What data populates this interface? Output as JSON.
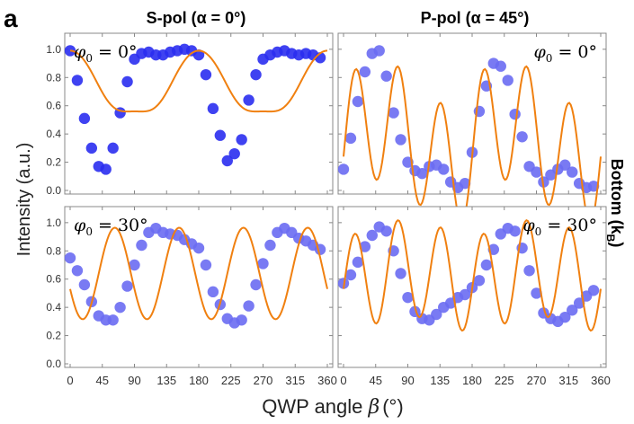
{
  "figure": {
    "panel_letter": "a",
    "column_titles": [
      "S-pol (α = 0°)",
      "P-pol (α = 45°)"
    ],
    "row_title_main": "Bottom (k",
    "row_title_sub": "B",
    "row_title_close": ")",
    "y_axis_label": "Intensity (a.u.)",
    "x_axis_label_text": "QWP angle ",
    "x_axis_label_symbol": "β",
    "x_axis_label_unit": "(°)"
  },
  "colors": {
    "marker": "#2a2ef0",
    "marker_light": "#6a6cf2",
    "fit": "#f08010",
    "frame": "#888888"
  },
  "chart_data": [
    {
      "type": "scatter",
      "panel": "top-left",
      "annotation": "φ0 = 0°",
      "xlim": [
        0,
        360
      ],
      "ylim": [
        0,
        1.05
      ],
      "x_ticks": [
        "0",
        "45",
        "90",
        "135",
        "180",
        "225",
        "270",
        "315",
        "360"
      ],
      "y_ticks": [
        "0.0",
        "0.2",
        "0.4",
        "0.6",
        "0.8",
        "1.0"
      ],
      "show_x_tick_labels": false,
      "show_y_tick_labels": true,
      "series": [
        {
          "x": [
            0,
            10,
            20,
            30,
            40,
            50,
            60,
            70,
            80,
            90,
            100,
            110,
            120,
            130,
            140,
            150,
            160,
            170,
            180,
            190,
            200,
            210,
            220,
            230,
            240,
            250,
            260,
            270,
            280,
            290,
            300,
            310,
            320,
            330,
            340,
            350
          ],
          "y": [
            0.99,
            0.78,
            0.51,
            0.3,
            0.17,
            0.15,
            0.3,
            0.55,
            0.77,
            0.93,
            0.97,
            0.98,
            0.96,
            0.96,
            0.98,
            0.99,
            1.0,
            0.99,
            0.96,
            0.82,
            0.58,
            0.39,
            0.21,
            0.26,
            0.36,
            0.64,
            0.82,
            0.93,
            0.96,
            0.98,
            0.99,
            0.97,
            0.96,
            0.97,
            0.96,
            0.94
          ]
        }
      ],
      "fit": {
        "c": [
          0.735,
          0.225,
          0.0,
          0.04,
          0.0,
          -0.01,
          0.0
        ]
      }
    },
    {
      "type": "scatter",
      "panel": "top-right",
      "annotation": "φ0 = 0°",
      "xlim": [
        0,
        360
      ],
      "ylim": [
        0,
        1.05
      ],
      "x_ticks": [
        "0",
        "45",
        "90",
        "135",
        "180",
        "225",
        "270",
        "315",
        "360"
      ],
      "y_ticks": [
        "0.0",
        "0.2",
        "0.4",
        "0.6",
        "0.8",
        "1.0"
      ],
      "show_x_tick_labels": false,
      "show_y_tick_labels": false,
      "series": [
        {
          "x": [
            0,
            10,
            20,
            30,
            40,
            50,
            60,
            70,
            80,
            90,
            100,
            110,
            120,
            130,
            140,
            150,
            160,
            170,
            180,
            190,
            200,
            210,
            220,
            230,
            240,
            250,
            260,
            270,
            280,
            290,
            300,
            310,
            320,
            330,
            340,
            350
          ],
          "y": [
            0.15,
            0.37,
            0.63,
            0.84,
            0.97,
            0.99,
            0.81,
            0.55,
            0.36,
            0.2,
            0.14,
            0.12,
            0.17,
            0.18,
            0.15,
            0.06,
            0.02,
            0.05,
            0.27,
            0.56,
            0.74,
            0.9,
            0.88,
            0.78,
            0.54,
            0.38,
            0.17,
            0.13,
            0.06,
            0.11,
            0.15,
            0.18,
            0.13,
            0.05,
            0.02,
            0.03
          ]
        }
      ],
      "fit": {
        "c": [
          0.35,
          -0.05,
          0.16,
          0.0,
          0.03,
          -0.06,
          0.43
        ]
      }
    },
    {
      "type": "scatter",
      "panel": "bottom-left",
      "annotation": "φ0 = 30°",
      "xlim": [
        0,
        360
      ],
      "ylim": [
        0,
        1.05
      ],
      "x_ticks": [
        "0",
        "45",
        "90",
        "135",
        "180",
        "225",
        "270",
        "315",
        "360"
      ],
      "y_ticks": [
        "0.0",
        "0.2",
        "0.4",
        "0.6",
        "0.8",
        "1.0"
      ],
      "show_x_tick_labels": true,
      "show_y_tick_labels": true,
      "series": [
        {
          "x": [
            0,
            10,
            20,
            30,
            40,
            50,
            60,
            70,
            80,
            90,
            100,
            110,
            120,
            130,
            140,
            150,
            160,
            170,
            180,
            190,
            200,
            210,
            220,
            230,
            240,
            250,
            260,
            270,
            280,
            290,
            300,
            310,
            320,
            330,
            340,
            350
          ],
          "y": [
            0.75,
            0.66,
            0.56,
            0.44,
            0.34,
            0.31,
            0.31,
            0.4,
            0.55,
            0.7,
            0.84,
            0.93,
            0.96,
            0.93,
            0.92,
            0.91,
            0.88,
            0.85,
            0.82,
            0.7,
            0.51,
            0.42,
            0.32,
            0.29,
            0.31,
            0.41,
            0.56,
            0.71,
            0.84,
            0.93,
            0.96,
            0.93,
            0.89,
            0.87,
            0.84,
            0.81
          ]
        }
      ],
      "fit": {
        "c": [
          0.64,
          0.0,
          0.0,
          -0.11,
          -0.305,
          0.0,
          0.0
        ]
      }
    },
    {
      "type": "scatter",
      "panel": "bottom-right",
      "annotation": "φ0 = 30°",
      "xlim": [
        0,
        360
      ],
      "ylim": [
        0,
        1.05
      ],
      "x_ticks": [
        "0",
        "45",
        "90",
        "135",
        "180",
        "225",
        "270",
        "315",
        "360"
      ],
      "y_ticks": [
        "0.0",
        "0.2",
        "0.4",
        "0.6",
        "0.8",
        "1.0"
      ],
      "show_x_tick_labels": true,
      "show_y_tick_labels": false,
      "series": [
        {
          "x": [
            0,
            10,
            20,
            30,
            40,
            50,
            60,
            70,
            80,
            90,
            100,
            110,
            120,
            130,
            140,
            150,
            160,
            170,
            180,
            190,
            200,
            210,
            220,
            230,
            240,
            250,
            260,
            270,
            280,
            290,
            300,
            310,
            320,
            330,
            340,
            350
          ],
          "y": [
            0.57,
            0.63,
            0.72,
            0.83,
            0.91,
            0.97,
            0.94,
            0.8,
            0.64,
            0.47,
            0.37,
            0.32,
            0.31,
            0.35,
            0.4,
            0.43,
            0.47,
            0.49,
            0.54,
            0.59,
            0.7,
            0.81,
            0.92,
            0.96,
            0.94,
            0.82,
            0.66,
            0.5,
            0.36,
            0.32,
            0.3,
            0.33,
            0.38,
            0.43,
            0.48,
            0.52
          ]
        }
      ],
      "fit": {
        "c": [
          0.626,
          -0.055,
          0.0,
          0.0,
          0.0,
          -0.04,
          0.34
        ]
      }
    }
  ]
}
